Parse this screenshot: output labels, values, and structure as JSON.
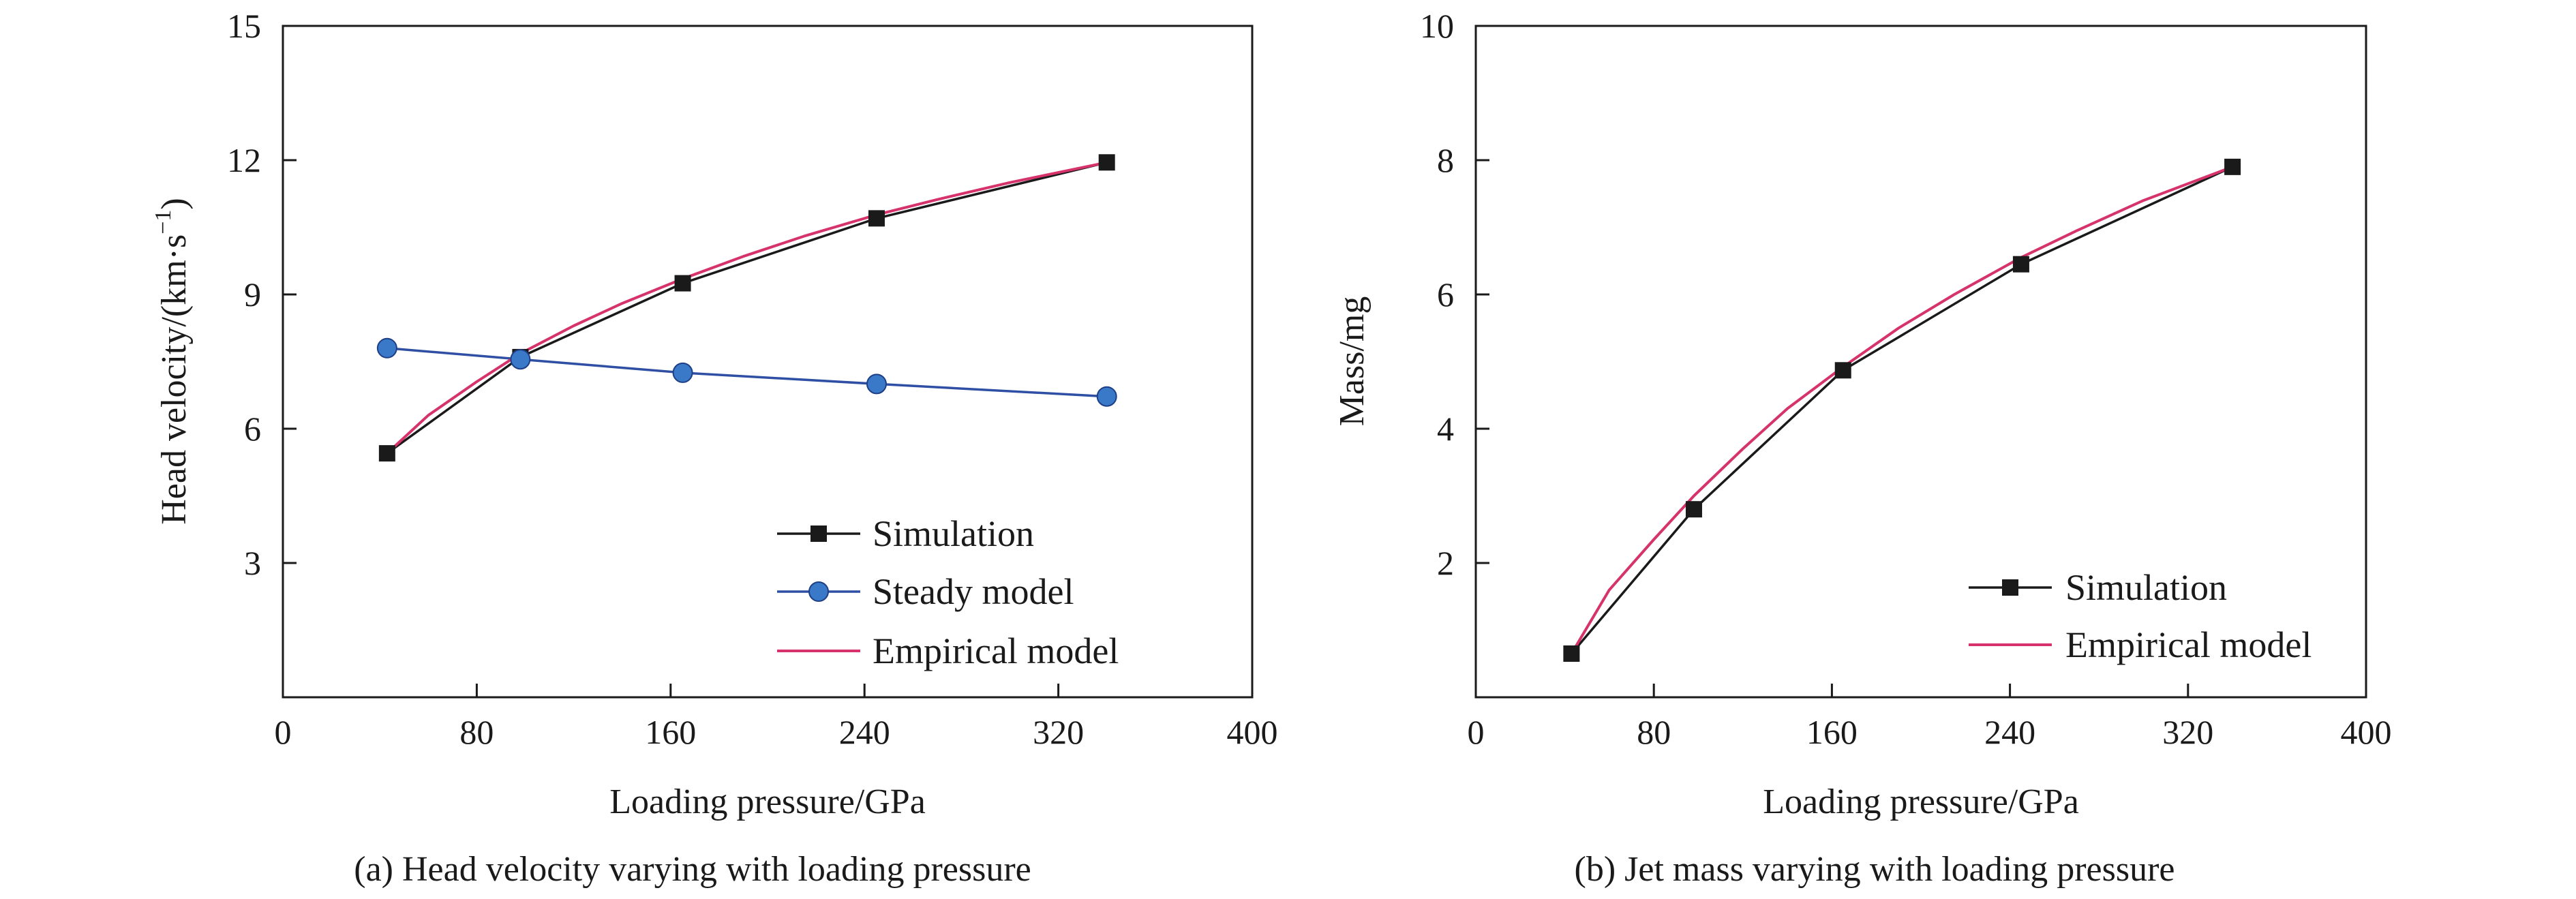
{
  "chart_data": [
    {
      "type": "line",
      "caption": "(a) Head velocity varying with loading pressure",
      "xlabel": "Loading pressure/GPa",
      "ylabel_main": "Head velocity/(km·s",
      "ylabel_sup": "−1",
      "ylabel_end": ")",
      "xlim": [
        0,
        400
      ],
      "ylim": [
        0,
        15
      ],
      "xticks": [
        0,
        80,
        160,
        240,
        320,
        400
      ],
      "yticks": [
        3,
        6,
        9,
        12,
        15
      ],
      "grid": false,
      "legend_position": "bottom-right",
      "series": [
        {
          "name": "Simulation",
          "marker": "square",
          "color": "#1a1a1a",
          "x": [
            43,
            98,
            165,
            245,
            340
          ],
          "y": [
            5.45,
            7.6,
            9.25,
            10.7,
            11.95
          ]
        },
        {
          "name": "Steady model",
          "marker": "circle",
          "color": "#2e4fa3",
          "marker_color": "#3a78c8",
          "x": [
            43,
            98,
            165,
            245,
            340
          ],
          "y": [
            7.8,
            7.55,
            7.25,
            7.0,
            6.72
          ]
        },
        {
          "name": "Empirical model",
          "marker": "none",
          "color": "#d6336c",
          "x": [
            43,
            60,
            80,
            98,
            120,
            140,
            165,
            190,
            215,
            245,
            270,
            300,
            340
          ],
          "y": [
            5.45,
            6.3,
            7.05,
            7.68,
            8.3,
            8.8,
            9.35,
            9.85,
            10.3,
            10.78,
            11.12,
            11.5,
            11.95
          ]
        }
      ]
    },
    {
      "type": "line",
      "caption": "(b) Jet mass varying with loading pressure",
      "xlabel": "Loading pressure/GPa",
      "ylabel": "Mass/mg",
      "xlim": [
        0,
        400
      ],
      "ylim": [
        0,
        10
      ],
      "xticks": [
        0,
        80,
        160,
        240,
        320,
        400
      ],
      "yticks": [
        2,
        4,
        6,
        8,
        10
      ],
      "grid": false,
      "legend_position": "bottom-right",
      "series": [
        {
          "name": "Simulation",
          "marker": "square",
          "color": "#1a1a1a",
          "x": [
            43,
            98,
            165,
            245,
            340
          ],
          "y": [
            0.65,
            2.8,
            4.87,
            6.45,
            7.9
          ]
        },
        {
          "name": "Empirical model",
          "marker": "none",
          "color": "#d6336c",
          "x": [
            43,
            60,
            80,
            98,
            120,
            140,
            165,
            190,
            215,
            245,
            270,
            300,
            340
          ],
          "y": [
            0.65,
            1.6,
            2.35,
            3.0,
            3.7,
            4.3,
            4.92,
            5.5,
            6.0,
            6.55,
            6.95,
            7.4,
            7.9
          ]
        }
      ]
    }
  ]
}
